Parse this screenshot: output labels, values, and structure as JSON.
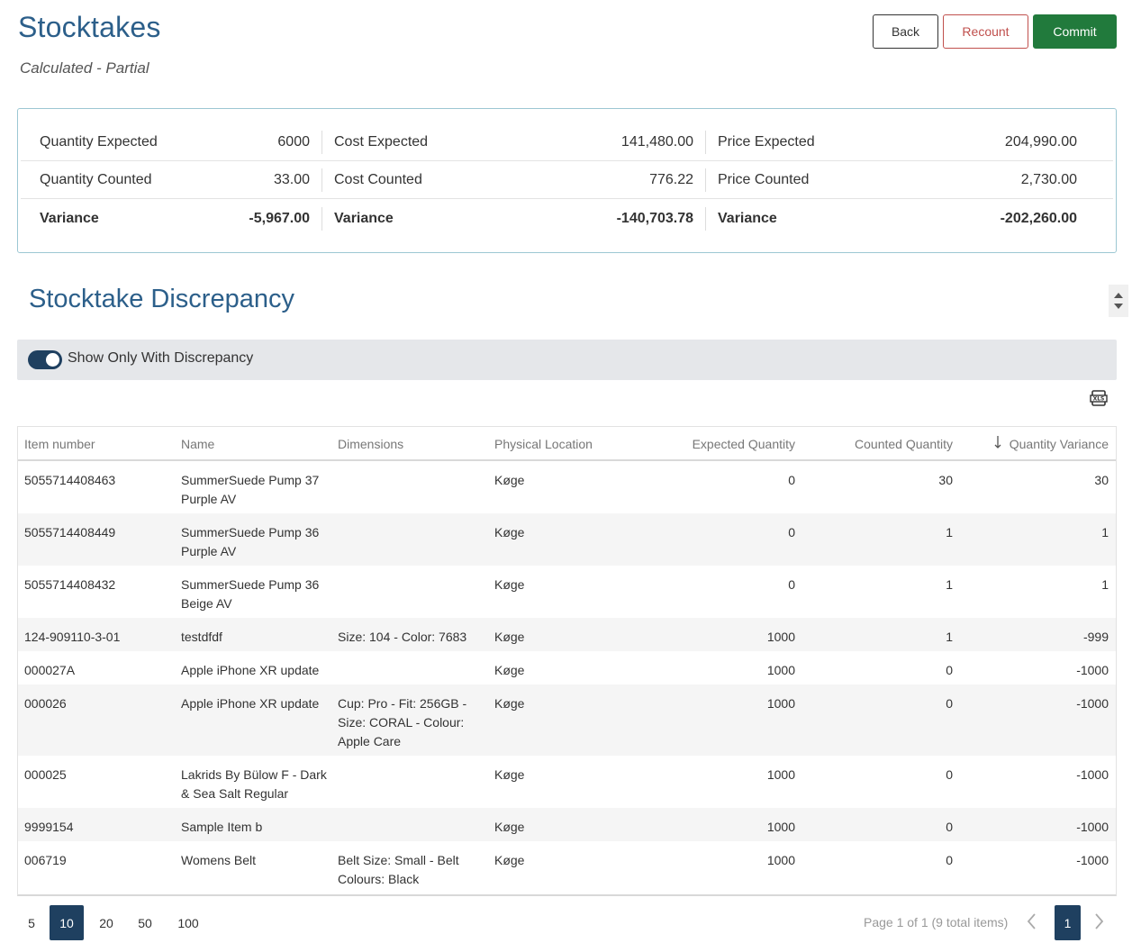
{
  "header": {
    "title": "Stocktakes",
    "subtitle": "Calculated - Partial",
    "back_label": "Back",
    "recount_label": "Recount",
    "commit_label": "Commit"
  },
  "summary": {
    "qty_expected_label": "Quantity Expected",
    "qty_expected": "6000",
    "cost_expected_label": "Cost Expected",
    "cost_expected": "141,480.00",
    "price_expected_label": "Price Expected",
    "price_expected": "204,990.00",
    "qty_counted_label": "Quantity Counted",
    "qty_counted": "33.00",
    "cost_counted_label": "Cost Counted",
    "cost_counted": "776.22",
    "price_counted_label": "Price Counted",
    "price_counted": "2,730.00",
    "qty_variance_label": "Variance",
    "qty_variance": "-5,967.00",
    "cost_variance_label": "Variance",
    "cost_variance": "-140,703.78",
    "price_variance_label": "Variance",
    "price_variance": "-202,260.00"
  },
  "discrepancy": {
    "title": "Stocktake Discrepancy",
    "toggle_label": "Show Only With Discrepancy",
    "export_icon": "xls-export-icon"
  },
  "grid": {
    "columns": [
      "Item number",
      "Name",
      "Dimensions",
      "Physical Location",
      "Expected Quantity",
      "Counted Quantity",
      "Quantity Variance"
    ],
    "rows": [
      {
        "item": "5055714408463",
        "name": "SummerSuede Pump 37 Purple AV",
        "dims": "",
        "loc": "Køge",
        "expected": "0",
        "counted": "30",
        "variance": "30"
      },
      {
        "item": "5055714408449",
        "name": "SummerSuede Pump 36 Purple AV",
        "dims": "",
        "loc": "Køge",
        "expected": "0",
        "counted": "1",
        "variance": "1"
      },
      {
        "item": "5055714408432",
        "name": "SummerSuede Pump 36 Beige AV",
        "dims": "",
        "loc": "Køge",
        "expected": "0",
        "counted": "1",
        "variance": "1"
      },
      {
        "item": "124-909110-3-01",
        "name": "testdfdf",
        "dims": "Size: 104 - Color: 7683",
        "loc": "Køge",
        "expected": "1000",
        "counted": "1",
        "variance": "-999"
      },
      {
        "item": "000027A",
        "name": "Apple iPhone XR update",
        "dims": "",
        "loc": "Køge",
        "expected": "1000",
        "counted": "0",
        "variance": "-1000"
      },
      {
        "item": "000026",
        "name": "Apple iPhone XR update",
        "dims": "Cup: Pro - Fit: 256GB - Size: CORAL - Colour: Apple Care",
        "loc": "Køge",
        "expected": "1000",
        "counted": "0",
        "variance": "-1000"
      },
      {
        "item": "000025",
        "name": "Lakrids By Bülow F - Dark & Sea Salt Regular",
        "dims": "",
        "loc": "Køge",
        "expected": "1000",
        "counted": "0",
        "variance": "-1000"
      },
      {
        "item": "9999154",
        "name": "Sample Item b",
        "dims": "",
        "loc": "Køge",
        "expected": "1000",
        "counted": "0",
        "variance": "-1000"
      },
      {
        "item": "006719",
        "name": "Womens Belt",
        "dims": "Belt Size: Small - Belt Colours: Black",
        "loc": "Køge",
        "expected": "1000",
        "counted": "0",
        "variance": "-1000"
      }
    ]
  },
  "pager": {
    "sizes": [
      "5",
      "10",
      "20",
      "50",
      "100"
    ],
    "active_size": "10",
    "info": "Page 1 of 1 (9 total items)",
    "current_page": "1"
  }
}
